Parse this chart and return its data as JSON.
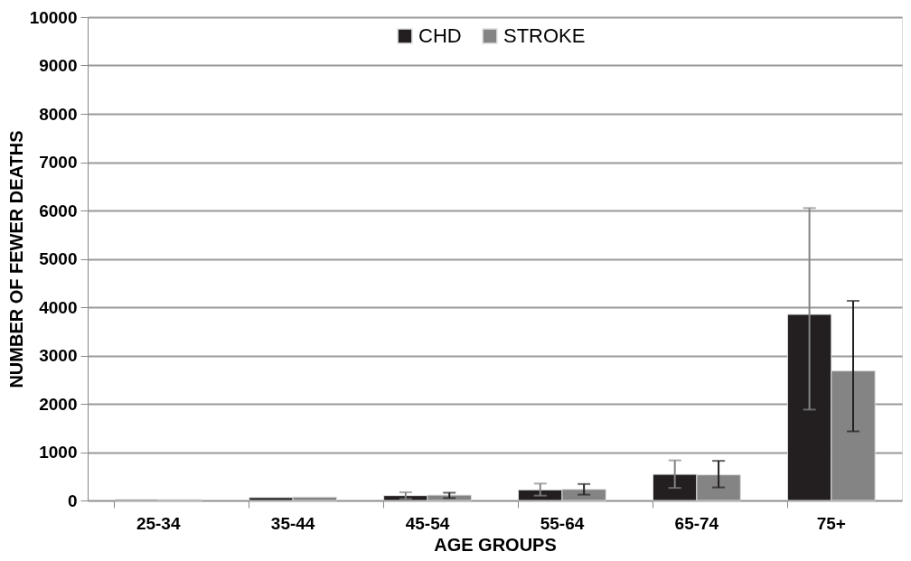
{
  "chart_data": {
    "type": "bar",
    "xlabel": "AGE GROUPS",
    "ylabel": "NUMBER OF FEWER DEATHS",
    "categories": [
      "25-34",
      "35-44",
      "45-54",
      "55-64",
      "65-74",
      "75+"
    ],
    "series": [
      {
        "name": "CHD",
        "color": "#231f20",
        "values": [
          20,
          60,
          100,
          220,
          540,
          3850
        ],
        "errors": [
          null,
          null,
          [
            30,
            170
          ],
          [
            100,
            350
          ],
          [
            260,
            830
          ],
          [
            1880,
            6050
          ]
        ]
      },
      {
        "name": "STROKE",
        "color": "#848484",
        "values": [
          20,
          70,
          110,
          230,
          530,
          2680
        ],
        "errors": [
          null,
          null,
          [
            50,
            160
          ],
          [
            120,
            340
          ],
          [
            270,
            820
          ],
          [
            1430,
            4130
          ]
        ]
      }
    ],
    "ylim": [
      0,
      10000
    ],
    "yticks": [
      0,
      1000,
      2000,
      3000,
      4000,
      5000,
      6000,
      7000,
      8000,
      9000,
      10000
    ],
    "grid": "y",
    "legend": "top"
  }
}
